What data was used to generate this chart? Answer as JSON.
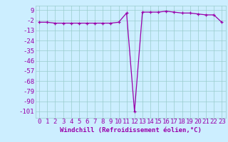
{
  "x": [
    0,
    1,
    2,
    3,
    4,
    5,
    6,
    7,
    8,
    9,
    10,
    11,
    12,
    13,
    14,
    15,
    16,
    17,
    18,
    19,
    20,
    21,
    22,
    23
  ],
  "y": [
    -4,
    -4,
    -5,
    -5,
    -5,
    -5,
    -5,
    -5,
    -5,
    -5,
    -4,
    6,
    -101,
    7,
    7,
    7,
    8,
    7,
    6,
    6,
    5,
    4,
    4,
    -4
  ],
  "line_color": "#9900aa",
  "marker": "+",
  "marker_color": "#9900aa",
  "bg_color": "#cceeff",
  "grid_color": "#99cccc",
  "xlabel": "Windchill (Refroidissement éolien,°C)",
  "ylabel_ticks": [
    9,
    -2,
    -13,
    -24,
    -35,
    -46,
    -57,
    -68,
    -79,
    -90,
    -101
  ],
  "ylim": [
    -108,
    14
  ],
  "xlim": [
    -0.5,
    23.5
  ],
  "xtick_labels": [
    "0",
    "1",
    "2",
    "3",
    "4",
    "5",
    "6",
    "7",
    "8",
    "9",
    "10",
    "11",
    "12",
    "13",
    "14",
    "15",
    "16",
    "17",
    "18",
    "19",
    "20",
    "21",
    "22",
    "23"
  ],
  "xlabel_color": "#9900aa",
  "tick_color": "#9900aa",
  "font_size_xlabel": 6.5,
  "font_size_tick": 6.5
}
